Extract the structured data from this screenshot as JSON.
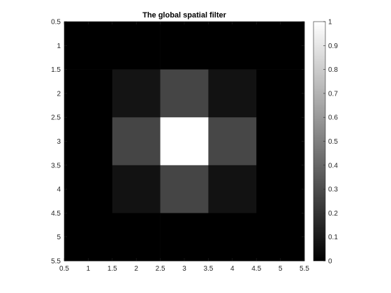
{
  "chart_data": {
    "type": "heatmap",
    "title": "The global spatial filter",
    "xlabel": "",
    "ylabel": "",
    "colormap": "gray",
    "x": [
      1,
      2,
      3,
      4,
      5
    ],
    "y": [
      1,
      2,
      3,
      4,
      5
    ],
    "xlim": [
      0.5,
      5.5
    ],
    "ylim": [
      0.5,
      5.5
    ],
    "x_ticks": [
      "0.5",
      "1",
      "1.5",
      "2",
      "2.5",
      "3",
      "3.5",
      "4",
      "4.5",
      "5",
      "5.5"
    ],
    "y_ticks": [
      "0.5",
      "1",
      "1.5",
      "2",
      "2.5",
      "3",
      "3.5",
      "4",
      "4.5",
      "5",
      "5.5"
    ],
    "values": [
      [
        0,
        0,
        0,
        0,
        0
      ],
      [
        0,
        0.08,
        0.27,
        0.07,
        0
      ],
      [
        0,
        0.27,
        1,
        0.28,
        0
      ],
      [
        0,
        0.07,
        0.27,
        0.07,
        0
      ],
      [
        0,
        0,
        0,
        0,
        0
      ]
    ],
    "colorbar": {
      "limits": [
        0,
        1
      ],
      "ticks": [
        "0",
        "0.1",
        "0.2",
        "0.3",
        "0.4",
        "0.5",
        "0.6",
        "0.7",
        "0.8",
        "0.9",
        "1"
      ]
    }
  }
}
